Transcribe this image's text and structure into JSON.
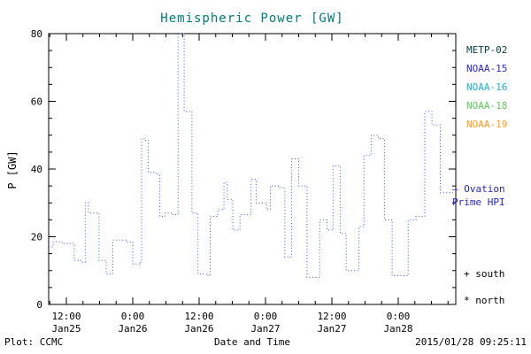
{
  "colors": {
    "title": "#007d7d",
    "frame": "#000000",
    "background": "#ffffff"
  },
  "legend": {
    "items": [
      {
        "label": "METP-02",
        "color": "#003f3f"
      },
      {
        "label": "NOAA-15",
        "color": "#2727cf"
      },
      {
        "label": "NOAA-16",
        "color": "#1fb0d8"
      },
      {
        "label": "NOAA-18",
        "color": "#5ecb5e"
      },
      {
        "label": "NOAA-19",
        "color": "#ff9a1e"
      }
    ]
  },
  "annotations": {
    "ovation_line1": "— Ovation",
    "ovation_line2": "Prime HPI",
    "ovation_color": "#2727cf",
    "south_marker": "+ south",
    "north_marker": "* north"
  },
  "footer": {
    "left": "Plot: CCMC",
    "right": "2015/01/28 09:25:11"
  },
  "chart_data": {
    "type": "line",
    "subtype": "step-dotted",
    "title": "Hemispheric Power [GW]",
    "xlabel": "Date and Time",
    "ylabel": "P [GW]",
    "ylim": [
      0,
      80
    ],
    "y_ticks": [
      0,
      20,
      40,
      60,
      80
    ],
    "y_minor_step": 5,
    "x_domain_hours": [
      8.8,
      82.4
    ],
    "x_minor_step_hours": 3,
    "x_ticks": [
      {
        "h": 12,
        "time": "12:00",
        "date": "Jan25"
      },
      {
        "h": 24,
        "time": "0:00",
        "date": "Jan26"
      },
      {
        "h": 36,
        "time": "12:00",
        "date": "Jan26"
      },
      {
        "h": 48,
        "time": "0:00",
        "date": "Jan27"
      },
      {
        "h": 60,
        "time": "12:00",
        "date": "Jan27"
      },
      {
        "h": 72,
        "time": "0:00",
        "date": "Jan28"
      }
    ],
    "grid": false,
    "legend_position": "right-outside",
    "series": [
      {
        "name": "Ovation Prime HPI",
        "color": "#3a55d5",
        "t_end": 82.4,
        "steps": [
          [
            8.8,
            17
          ],
          [
            9.6,
            18.5
          ],
          [
            11.2,
            18
          ],
          [
            13.4,
            13
          ],
          [
            14.6,
            12.5
          ],
          [
            15.4,
            30
          ],
          [
            16.0,
            27
          ],
          [
            17.9,
            13
          ],
          [
            19.2,
            9
          ],
          [
            20.4,
            19
          ],
          [
            22.8,
            18.5
          ],
          [
            24.0,
            12
          ],
          [
            25.2,
            12.5
          ],
          [
            25.6,
            49
          ],
          [
            26.3,
            48.5
          ],
          [
            26.8,
            39
          ],
          [
            28.2,
            38.5
          ],
          [
            28.9,
            26
          ],
          [
            29.8,
            27
          ],
          [
            31.3,
            26.5
          ],
          [
            32.2,
            80
          ],
          [
            33.3,
            57
          ],
          [
            34.7,
            27
          ],
          [
            35.8,
            9
          ],
          [
            37.4,
            8.5
          ],
          [
            38.0,
            26
          ],
          [
            39.4,
            28
          ],
          [
            40.5,
            36
          ],
          [
            41.1,
            31
          ],
          [
            42.1,
            22
          ],
          [
            43.4,
            26.5
          ],
          [
            45.4,
            37
          ],
          [
            46.3,
            30
          ],
          [
            48.2,
            28
          ],
          [
            48.9,
            35
          ],
          [
            50.3,
            34.5
          ],
          [
            51.5,
            14
          ],
          [
            52.7,
            43
          ],
          [
            54.0,
            35
          ],
          [
            55.5,
            8
          ],
          [
            57.8,
            25
          ],
          [
            59.1,
            22
          ],
          [
            60.2,
            41
          ],
          [
            61.5,
            21
          ],
          [
            62.6,
            10
          ],
          [
            64.9,
            23
          ],
          [
            65.8,
            44
          ],
          [
            67.1,
            50
          ],
          [
            68.4,
            49
          ],
          [
            69.5,
            25
          ],
          [
            70.9,
            8.5
          ],
          [
            73.8,
            25
          ],
          [
            75.2,
            26
          ],
          [
            76.8,
            57
          ],
          [
            78.1,
            53
          ],
          [
            79.6,
            33
          ]
        ]
      }
    ]
  }
}
